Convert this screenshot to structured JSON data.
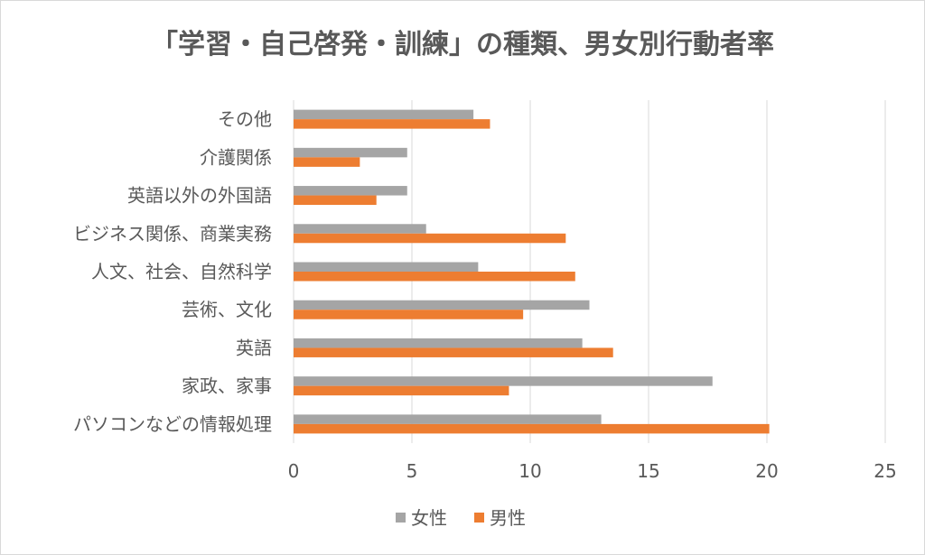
{
  "chart_data": {
    "type": "bar",
    "orientation": "horizontal",
    "title": "「学習・自己啓発・訓練」の種類、男女別行動者率",
    "categories": [
      "その他",
      "介護関係",
      "英語以外の外国語",
      "ビジネス関係、商業実務",
      "人文、社会、自然科学",
      "芸術、文化",
      "英語",
      "家政、家事",
      "パソコンなどの情報処理"
    ],
    "series": [
      {
        "name": "女性",
        "color": "#a5a5a5",
        "values": [
          7.6,
          4.8,
          4.8,
          5.6,
          7.8,
          12.5,
          12.2,
          17.7,
          13.0
        ]
      },
      {
        "name": "男性",
        "color": "#ed7d31",
        "values": [
          8.3,
          2.8,
          3.5,
          11.5,
          11.9,
          9.7,
          13.5,
          9.1,
          20.1
        ]
      }
    ],
    "xlim": [
      0,
      25
    ],
    "xticks": [
      "0",
      "5",
      "10",
      "15",
      "20",
      "25"
    ],
    "grid": true,
    "legend_position": "bottom"
  }
}
